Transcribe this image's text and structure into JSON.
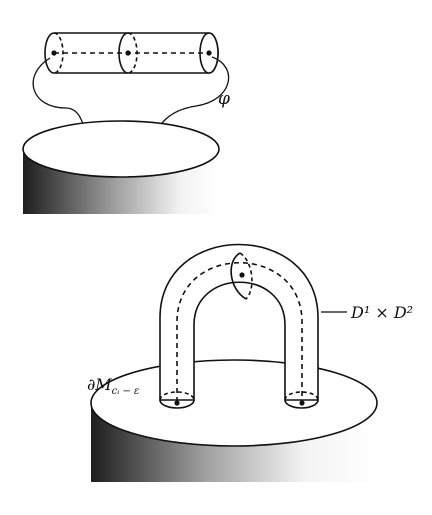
{
  "labels": {
    "phi": "φ",
    "d1xd2": "D¹ × D²",
    "boundary": "∂M",
    "boundary_sub": "cᵢ − ε"
  },
  "colors": {
    "ink": "#111111",
    "paper": "#ffffff",
    "shade_dark": "#2a2a2a",
    "shade_light": "#ffffff"
  }
}
